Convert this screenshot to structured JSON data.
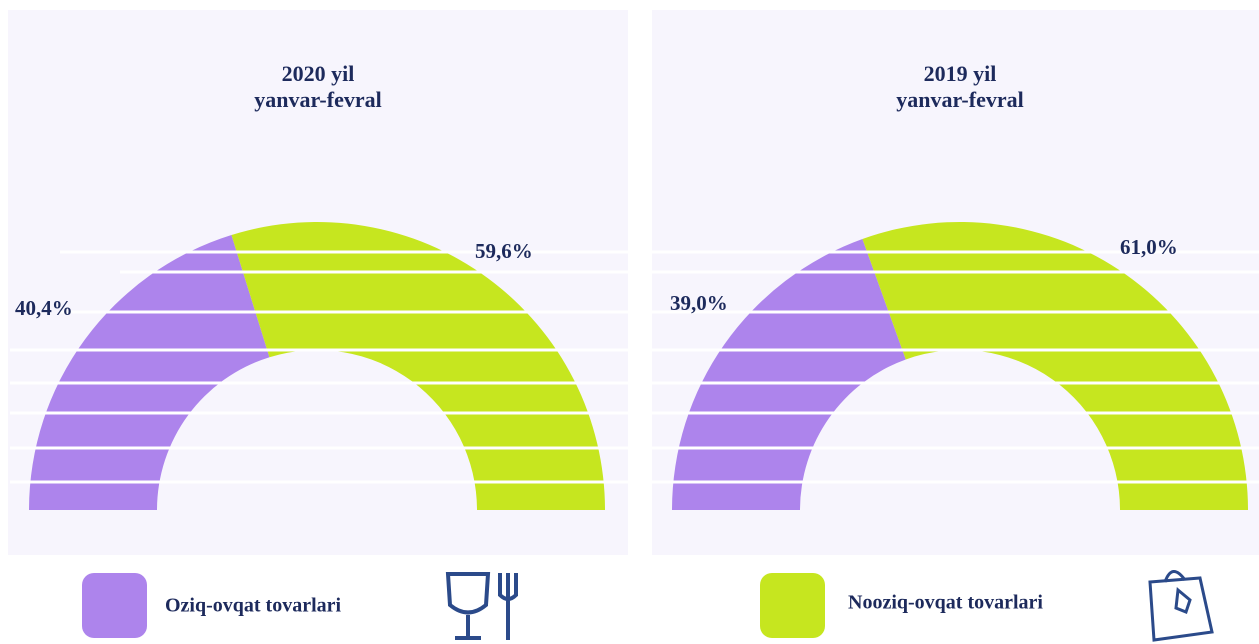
{
  "legend": [
    {
      "label": "Oziq-ovqat tovarlari",
      "color": "#ad84ec"
    },
    {
      "label": "Nooziq-ovqat tovarlari",
      "color": "#c6e61f"
    }
  ],
  "chart_data": [
    {
      "type": "half-donut",
      "title": [
        "2020 yil",
        "yanvar-fevral"
      ],
      "values": [
        40.4,
        59.6
      ],
      "value_labels": [
        "40,4%",
        "59,6%"
      ]
    },
    {
      "type": "half-donut",
      "title": [
        "2019 yil",
        "yanvar-fevral"
      ],
      "values": [
        39.0,
        61.0
      ],
      "value_labels": [
        "39,0%",
        "61,0%"
      ]
    }
  ]
}
